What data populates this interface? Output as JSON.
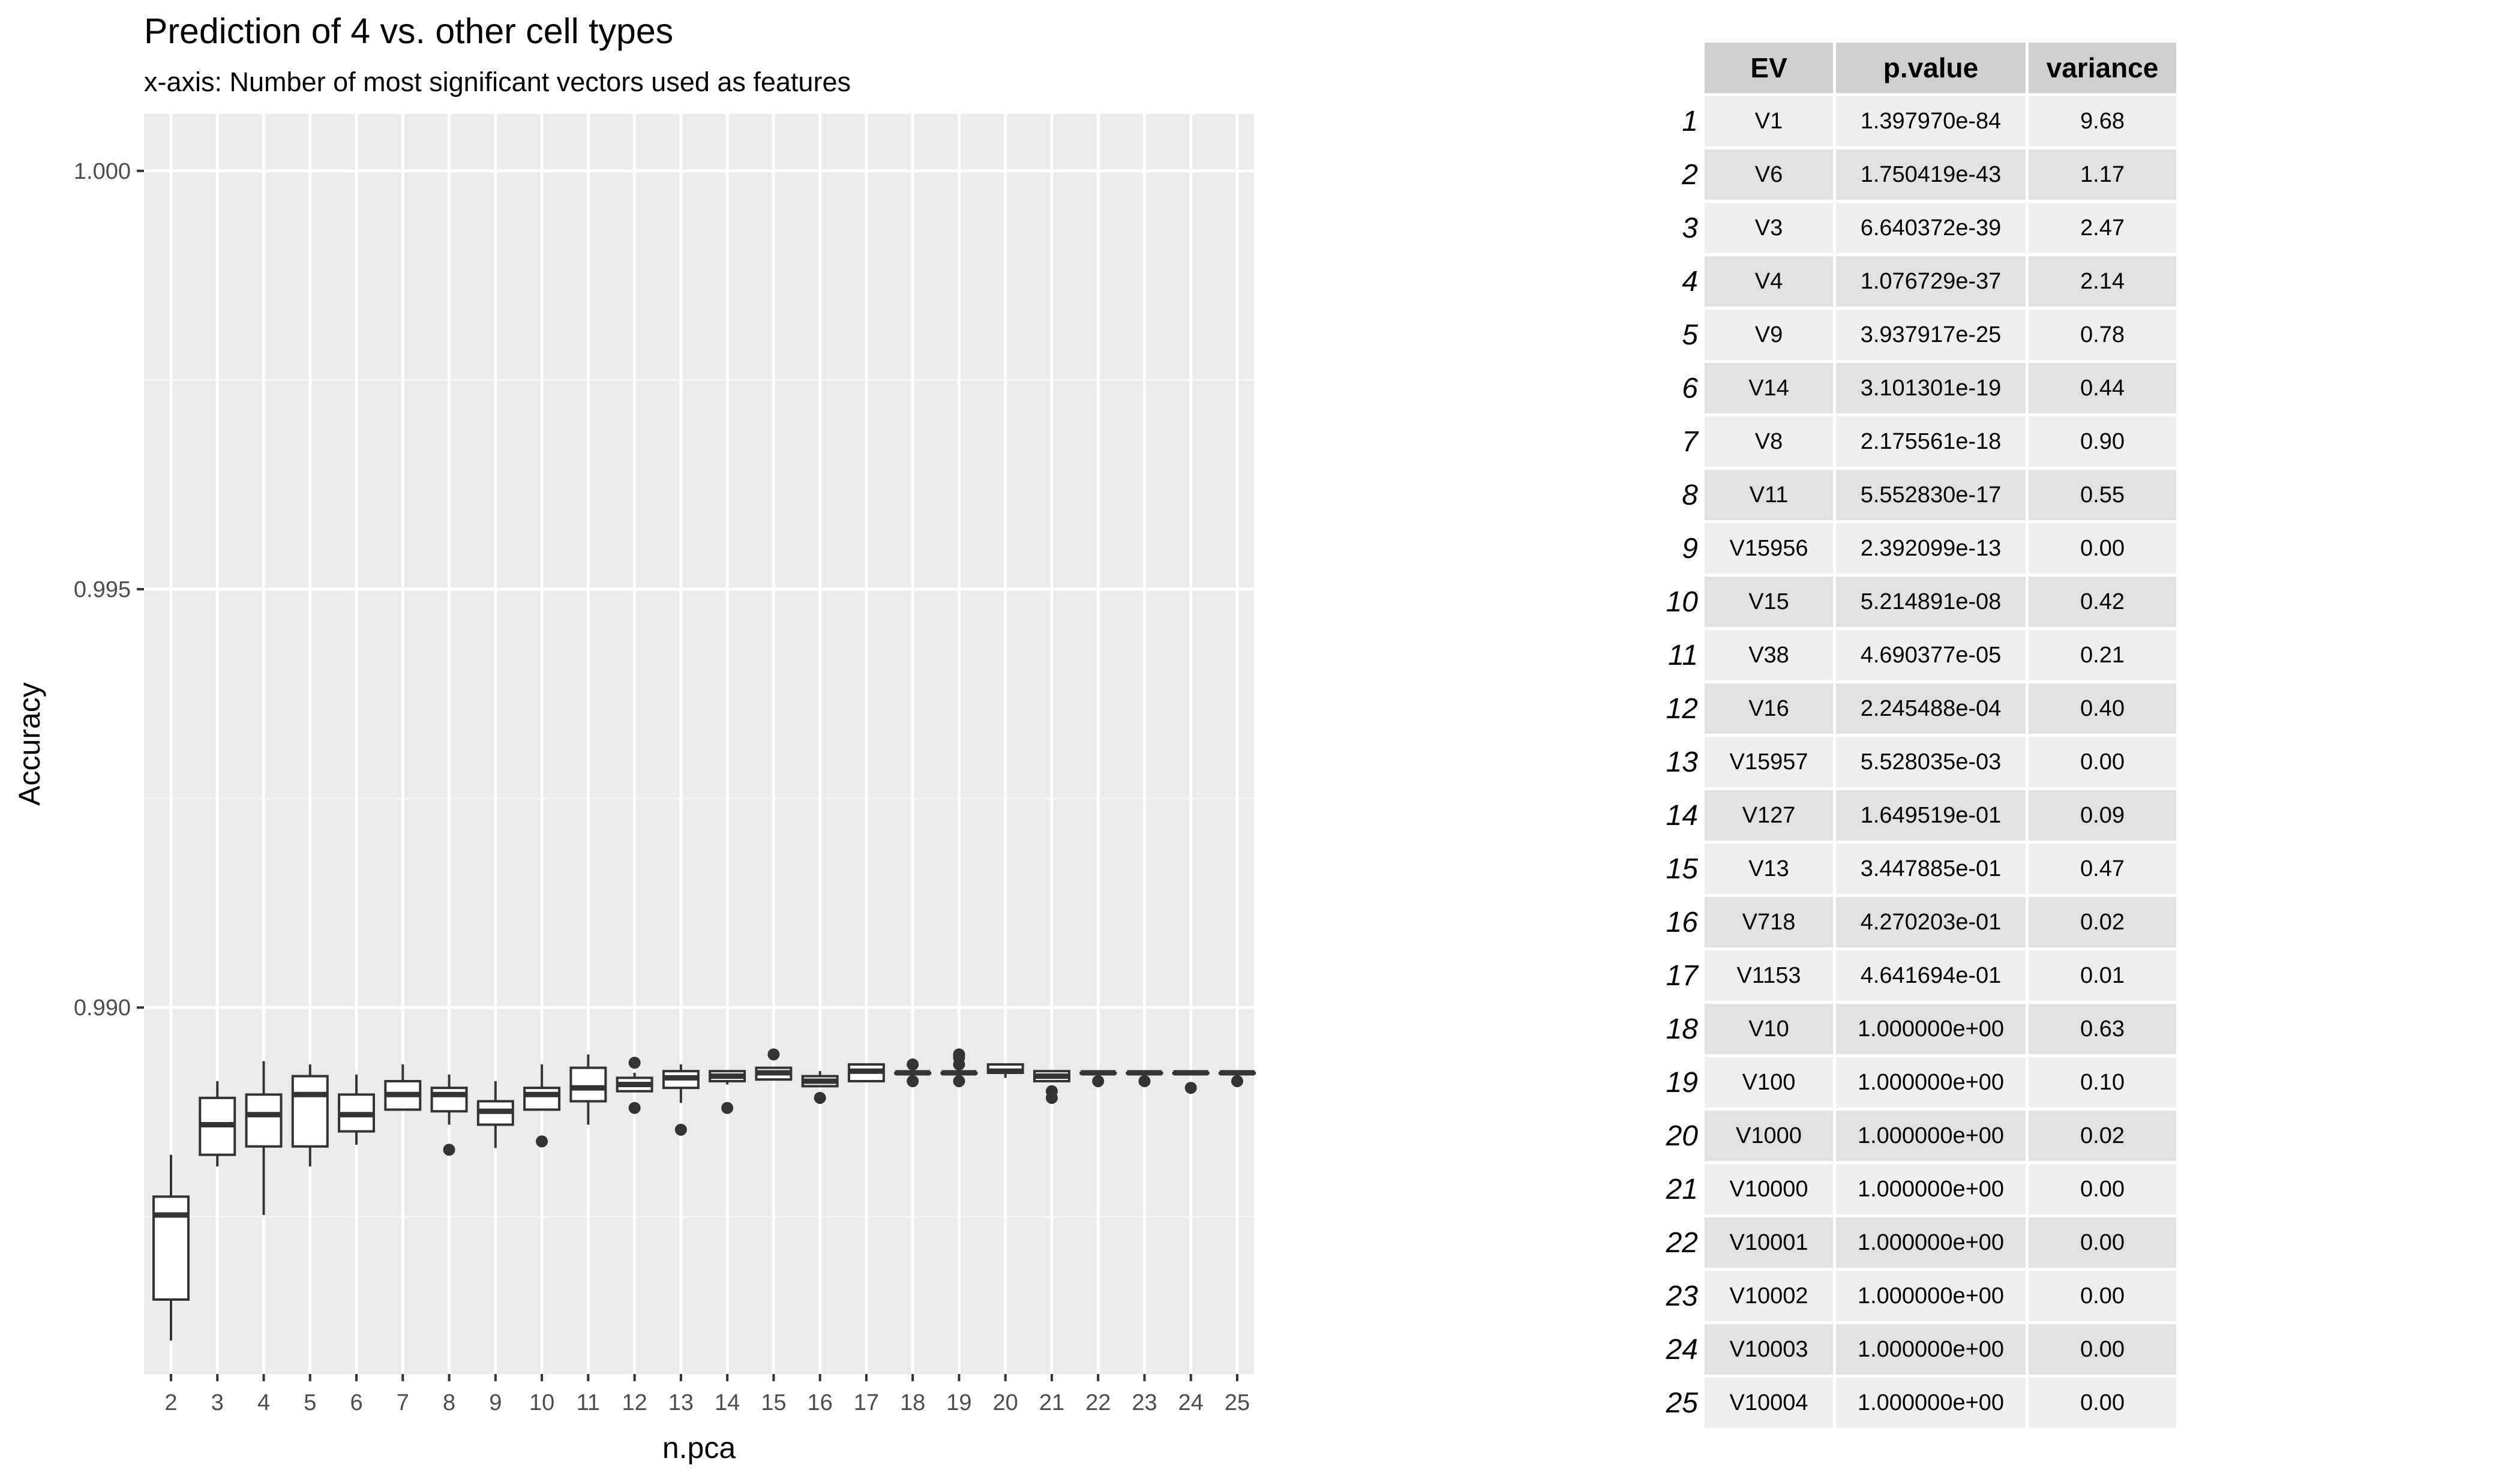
{
  "chart_data": {
    "type": "boxplot",
    "title": "Prediction of 4 vs. other cell types",
    "subtitle": "x-axis: Number of most significant vectors used as features",
    "xlabel": "n.pca",
    "ylabel": "Accuracy",
    "ylim": [
      0.98562,
      1.00068
    ],
    "yticks": [
      0.99,
      0.995,
      1.0
    ],
    "ytick_labels": [
      "0.990",
      "0.995",
      "1.000"
    ],
    "grid": true,
    "categories": [
      "2",
      "3",
      "4",
      "5",
      "6",
      "7",
      "8",
      "9",
      "10",
      "11",
      "12",
      "13",
      "14",
      "15",
      "16",
      "17",
      "18",
      "19",
      "20",
      "21",
      "22",
      "23",
      "24",
      "25"
    ],
    "boxes": [
      {
        "whisker_low": 0.98602,
        "q1": 0.98651,
        "median": 0.98752,
        "q3": 0.98774,
        "whisker_high": 0.98824,
        "outliers": []
      },
      {
        "whisker_low": 0.9881,
        "q1": 0.98824,
        "median": 0.9886,
        "q3": 0.98892,
        "whisker_high": 0.98912,
        "outliers": []
      },
      {
        "whisker_low": 0.98752,
        "q1": 0.98834,
        "median": 0.98872,
        "q3": 0.98896,
        "whisker_high": 0.98936,
        "outliers": []
      },
      {
        "whisker_low": 0.9881,
        "q1": 0.98834,
        "median": 0.98896,
        "q3": 0.98918,
        "whisker_high": 0.98932,
        "outliers": []
      },
      {
        "whisker_low": 0.98836,
        "q1": 0.98852,
        "median": 0.98872,
        "q3": 0.98896,
        "whisker_high": 0.9892,
        "outliers": []
      },
      {
        "whisker_low": 0.98878,
        "q1": 0.98878,
        "median": 0.98896,
        "q3": 0.98912,
        "whisker_high": 0.98932,
        "outliers": []
      },
      {
        "whisker_low": 0.9886,
        "q1": 0.98876,
        "median": 0.98896,
        "q3": 0.98904,
        "whisker_high": 0.9892,
        "outliers": [
          0.9883
        ]
      },
      {
        "whisker_low": 0.98832,
        "q1": 0.9886,
        "median": 0.98876,
        "q3": 0.98888,
        "whisker_high": 0.98912,
        "outliers": []
      },
      {
        "whisker_low": 0.98878,
        "q1": 0.98878,
        "median": 0.98896,
        "q3": 0.98904,
        "whisker_high": 0.98932,
        "outliers": [
          0.9884
        ]
      },
      {
        "whisker_low": 0.9886,
        "q1": 0.98888,
        "median": 0.98904,
        "q3": 0.98928,
        "whisker_high": 0.98944,
        "outliers": []
      },
      {
        "whisker_low": 0.989,
        "q1": 0.989,
        "median": 0.98908,
        "q3": 0.98916,
        "whisker_high": 0.98922,
        "outliers": [
          0.9888,
          0.98934
        ]
      },
      {
        "whisker_low": 0.98886,
        "q1": 0.98904,
        "median": 0.98916,
        "q3": 0.98924,
        "whisker_high": 0.98932,
        "outliers": [
          0.98854
        ]
      },
      {
        "whisker_low": 0.98908,
        "q1": 0.98912,
        "median": 0.98918,
        "q3": 0.98924,
        "whisker_high": 0.98924,
        "outliers": [
          0.9888
        ]
      },
      {
        "whisker_low": 0.98914,
        "q1": 0.98914,
        "median": 0.98922,
        "q3": 0.98928,
        "whisker_high": 0.98928,
        "outliers": [
          0.98944
        ]
      },
      {
        "whisker_low": 0.98906,
        "q1": 0.98906,
        "median": 0.98912,
        "q3": 0.98918,
        "whisker_high": 0.98924,
        "outliers": [
          0.98892
        ]
      },
      {
        "whisker_low": 0.98912,
        "q1": 0.98912,
        "median": 0.98924,
        "q3": 0.98932,
        "whisker_high": 0.98932,
        "outliers": []
      },
      {
        "whisker_low": 0.98922,
        "q1": 0.98922,
        "median": 0.98922,
        "q3": 0.98922,
        "whisker_high": 0.98922,
        "outliers": [
          0.98912,
          0.98932
        ]
      },
      {
        "whisker_low": 0.98922,
        "q1": 0.98922,
        "median": 0.98922,
        "q3": 0.98922,
        "whisker_high": 0.98922,
        "outliers": [
          0.98912,
          0.98932,
          0.98944,
          0.9894
        ]
      },
      {
        "whisker_low": 0.98916,
        "q1": 0.98922,
        "median": 0.98924,
        "q3": 0.98932,
        "whisker_high": 0.98932,
        "outliers": []
      },
      {
        "whisker_low": 0.98912,
        "q1": 0.98912,
        "median": 0.98918,
        "q3": 0.98924,
        "whisker_high": 0.98924,
        "outliers": [
          0.989,
          0.98892
        ]
      },
      {
        "whisker_low": 0.98922,
        "q1": 0.98922,
        "median": 0.98922,
        "q3": 0.98922,
        "whisker_high": 0.98922,
        "outliers": [
          0.98912
        ]
      },
      {
        "whisker_low": 0.98922,
        "q1": 0.98922,
        "median": 0.98922,
        "q3": 0.98922,
        "whisker_high": 0.98922,
        "outliers": [
          0.98912
        ]
      },
      {
        "whisker_low": 0.98922,
        "q1": 0.98922,
        "median": 0.98922,
        "q3": 0.98922,
        "whisker_high": 0.98922,
        "outliers": [
          0.98904
        ]
      },
      {
        "whisker_low": 0.98922,
        "q1": 0.98922,
        "median": 0.98922,
        "q3": 0.98922,
        "whisker_high": 0.98922,
        "outliers": [
          0.98912
        ]
      }
    ]
  },
  "table": {
    "headers": [
      "EV",
      "p.value",
      "variance"
    ],
    "rows": [
      {
        "n": "1",
        "ev": "V1",
        "p": "1.397970e-84",
        "var": "9.68"
      },
      {
        "n": "2",
        "ev": "V6",
        "p": "1.750419e-43",
        "var": "1.17"
      },
      {
        "n": "3",
        "ev": "V3",
        "p": "6.640372e-39",
        "var": "2.47"
      },
      {
        "n": "4",
        "ev": "V4",
        "p": "1.076729e-37",
        "var": "2.14"
      },
      {
        "n": "5",
        "ev": "V9",
        "p": "3.937917e-25",
        "var": "0.78"
      },
      {
        "n": "6",
        "ev": "V14",
        "p": "3.101301e-19",
        "var": "0.44"
      },
      {
        "n": "7",
        "ev": "V8",
        "p": "2.175561e-18",
        "var": "0.90"
      },
      {
        "n": "8",
        "ev": "V11",
        "p": "5.552830e-17",
        "var": "0.55"
      },
      {
        "n": "9",
        "ev": "V15956",
        "p": "2.392099e-13",
        "var": "0.00"
      },
      {
        "n": "10",
        "ev": "V15",
        "p": "5.214891e-08",
        "var": "0.42"
      },
      {
        "n": "11",
        "ev": "V38",
        "p": "4.690377e-05",
        "var": "0.21"
      },
      {
        "n": "12",
        "ev": "V16",
        "p": "2.245488e-04",
        "var": "0.40"
      },
      {
        "n": "13",
        "ev": "V15957",
        "p": "5.528035e-03",
        "var": "0.00"
      },
      {
        "n": "14",
        "ev": "V127",
        "p": "1.649519e-01",
        "var": "0.09"
      },
      {
        "n": "15",
        "ev": "V13",
        "p": "3.447885e-01",
        "var": "0.47"
      },
      {
        "n": "16",
        "ev": "V718",
        "p": "4.270203e-01",
        "var": "0.02"
      },
      {
        "n": "17",
        "ev": "V1153",
        "p": "4.641694e-01",
        "var": "0.01"
      },
      {
        "n": "18",
        "ev": "V10",
        "p": "1.000000e+00",
        "var": "0.63"
      },
      {
        "n": "19",
        "ev": "V100",
        "p": "1.000000e+00",
        "var": "0.10"
      },
      {
        "n": "20",
        "ev": "V1000",
        "p": "1.000000e+00",
        "var": "0.02"
      },
      {
        "n": "21",
        "ev": "V10000",
        "p": "1.000000e+00",
        "var": "0.00"
      },
      {
        "n": "22",
        "ev": "V10001",
        "p": "1.000000e+00",
        "var": "0.00"
      },
      {
        "n": "23",
        "ev": "V10002",
        "p": "1.000000e+00",
        "var": "0.00"
      },
      {
        "n": "24",
        "ev": "V10003",
        "p": "1.000000e+00",
        "var": "0.00"
      },
      {
        "n": "25",
        "ev": "V10004",
        "p": "1.000000e+00",
        "var": "0.00"
      }
    ]
  }
}
